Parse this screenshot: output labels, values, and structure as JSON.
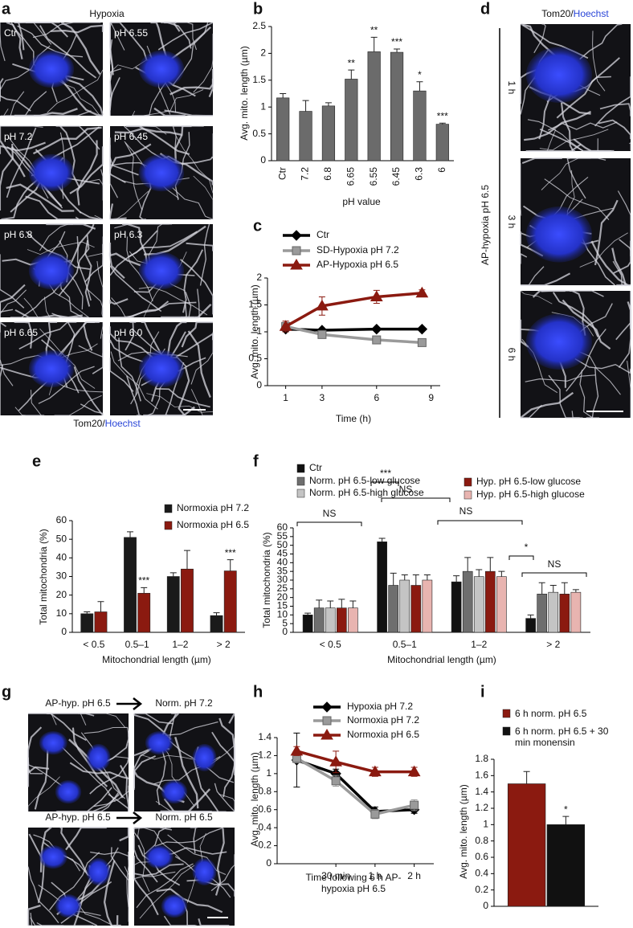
{
  "panel_labels": [
    "a",
    "b",
    "c",
    "d",
    "e",
    "f",
    "g",
    "h",
    "i"
  ],
  "panel_a": {
    "title": "Hypoxia",
    "labels": [
      "Ctr",
      "pH 6.55",
      "pH 7.2",
      "pH 6.45",
      "pH 6.8",
      "pH 6.3",
      "pH 6.65",
      "pH 6.0"
    ],
    "stain": [
      "Tom20/",
      "Hoechst"
    ]
  },
  "panel_d": {
    "stain": [
      "Tom20/",
      "Hoechst"
    ],
    "condition": "AP-hypoxia pH 6.5",
    "times": [
      "1 h",
      "3 h",
      "6 h"
    ]
  },
  "panel_g": {
    "labels": [
      "AP-hyp. pH 6.5",
      "Norm. pH 7.2",
      "AP-hyp. pH 6.5",
      "Norm. pH 6.5"
    ]
  },
  "chart_data": [
    {
      "type": "bar",
      "ylabel": "Avg. mito. length (µm)",
      "xlabel": "pH value",
      "categories": [
        "Ctr",
        "7.2",
        "6.8",
        "6.65",
        "6.55",
        "6.45",
        "6.3",
        "6"
      ],
      "series": [
        {
          "color": "#6b6b6b",
          "values": [
            1.17,
            0.92,
            1.02,
            1.52,
            2.03,
            2.02,
            1.3,
            0.68
          ],
          "errors": [
            0.08,
            0.2,
            0.06,
            0.17,
            0.27,
            0.06,
            0.17,
            0.02
          ],
          "annotations": [
            null,
            null,
            null,
            "**",
            "**",
            "***",
            "*",
            "***"
          ]
        }
      ],
      "ylim": [
        0,
        2.5
      ],
      "yticks": [
        0,
        0.5,
        1,
        1.5,
        2,
        2.5
      ]
    },
    {
      "type": "line",
      "ylabel": "Avg. mito. length (µm)",
      "xlabel": "Time (h)",
      "x": [
        1,
        3,
        6,
        8.5
      ],
      "xlim": [
        0,
        9.5
      ],
      "xticks": [
        1,
        3,
        6,
        9
      ],
      "ylim": [
        0,
        2
      ],
      "yticks": [
        0,
        0.5,
        1,
        1.5,
        2
      ],
      "series": [
        {
          "name": "Ctr",
          "color": "#000000",
          "marker": "diamond",
          "values": [
            1.05,
            1.03,
            1.05,
            1.05
          ],
          "errors": [
            0.05,
            0.02,
            0.02,
            0.02
          ]
        },
        {
          "name": "SD-Hypoxia pH 7.2",
          "color": "#9a9a9a",
          "marker": "square",
          "values": [
            1.1,
            0.95,
            0.85,
            0.8
          ],
          "errors": [
            0.05,
            0.06,
            0.04,
            0.05
          ]
        },
        {
          "name": "AP-Hypoxia pH 6.5",
          "color": "#8b1a10",
          "marker": "triangle",
          "values": [
            1.1,
            1.48,
            1.65,
            1.72
          ],
          "errors": [
            0.1,
            0.17,
            0.12,
            0.06
          ]
        }
      ]
    },
    {
      "type": "bar",
      "ylabel": "Total mitochondria (%)",
      "xlabel": "Mitochondrial length (µm)",
      "categories": [
        "< 0.5",
        "0.5–1",
        "1–2",
        "> 2"
      ],
      "ylim": [
        0,
        60
      ],
      "yticks": [
        0,
        10,
        20,
        30,
        40,
        50,
        60
      ],
      "series": [
        {
          "name": "Normoxia pH 7.2",
          "color": "#1a1a1a",
          "values": [
            10,
            51,
            30,
            9
          ],
          "errors": [
            1,
            3,
            2,
            1.5
          ]
        },
        {
          "name": "Normoxia pH 6.5",
          "color": "#8b1a10",
          "values": [
            11,
            21,
            34,
            33
          ],
          "errors": [
            5.5,
            3,
            10,
            6
          ],
          "annotations": [
            null,
            "***",
            null,
            "***"
          ]
        }
      ]
    },
    {
      "type": "bar",
      "ylabel": "Total mitochondria (%)",
      "xlabel": "Mitochondrial length (µm)",
      "categories": [
        "< 0.5",
        "0.5–1",
        "1–2",
        "> 2"
      ],
      "ylim": [
        0,
        60
      ],
      "yticks": [
        0,
        5,
        10,
        15,
        20,
        25,
        30,
        35,
        40,
        45,
        50,
        55,
        60
      ],
      "annotations": [
        "NS",
        "***",
        "NS",
        "NS",
        "*",
        "NS"
      ],
      "series": [
        {
          "name": "Ctr",
          "color": "#111111",
          "values": [
            10,
            52,
            29,
            8
          ],
          "errors": [
            1,
            2,
            3.5,
            2
          ]
        },
        {
          "name": "Norm. pH 6.5-low glucose",
          "color": "#6e6e6e",
          "values": [
            14,
            27,
            35,
            22
          ],
          "errors": [
            4.5,
            7,
            8,
            6.5
          ]
        },
        {
          "name": "Norm. pH 6.5-high glucose",
          "color": "#c4c4c4",
          "values": [
            14,
            30,
            32,
            23
          ],
          "errors": [
            4,
            3,
            4,
            4
          ]
        },
        {
          "name": "Hyp. pH 6.5-low glucose",
          "color": "#8b1a10",
          "values": [
            14,
            27,
            35,
            22
          ],
          "errors": [
            5,
            6,
            8,
            6.5
          ]
        },
        {
          "name": "Hyp. pH 6.5-high glucose",
          "color": "#e8b4b0",
          "values": [
            14,
            30,
            32,
            23
          ],
          "errors": [
            4,
            3,
            3,
            1.5
          ]
        }
      ]
    },
    {
      "type": "line",
      "ylabel": "Avg. mito. length (µm)",
      "xlabel": "Time following 6 h AP-hypoxia pH 6.5",
      "categories": [
        null,
        "30 min",
        "1 h",
        "2 h"
      ],
      "ylim": [
        0,
        1.4
      ],
      "yticks": [
        0,
        0.2,
        0.4,
        0.6,
        0.8,
        1,
        1.2,
        1.4
      ],
      "series": [
        {
          "name": "Hypoxia pH 7.2",
          "color": "#000000",
          "marker": "diamond",
          "values": [
            1.15,
            1.0,
            0.58,
            0.6
          ],
          "errors": [
            0.3,
            0.05,
            0.05,
            0.04
          ]
        },
        {
          "name": "Normoxia pH 7.2",
          "color": "#9a9a9a",
          "marker": "square",
          "values": [
            1.17,
            0.92,
            0.55,
            0.65
          ],
          "errors": [
            0.05,
            0.06,
            0.05,
            0.06
          ]
        },
        {
          "name": "Normoxia pH 6.5",
          "color": "#8b1a10",
          "marker": "triangle",
          "values": [
            1.25,
            1.13,
            1.02,
            1.02
          ],
          "errors": [
            0.05,
            0.12,
            0.05,
            0.05
          ]
        }
      ]
    },
    {
      "type": "bar",
      "ylabel": "Avg. mito. length (µm)",
      "ylim": [
        0,
        1.8
      ],
      "yticks": [
        0,
        0.2,
        0.4,
        0.6,
        0.8,
        1,
        1.2,
        1.4,
        1.6,
        1.8
      ],
      "series": [
        {
          "name": "6 h norm. pH 6.5",
          "color": "#8b1a10",
          "values": [
            1.5
          ],
          "errors": [
            0.15
          ]
        },
        {
          "name": "6 h norm. pH 6.5 + 30 min monensin",
          "color": "#111111",
          "values": [
            1.0
          ],
          "errors": [
            0.1
          ],
          "annotations": [
            "*"
          ]
        }
      ]
    }
  ]
}
